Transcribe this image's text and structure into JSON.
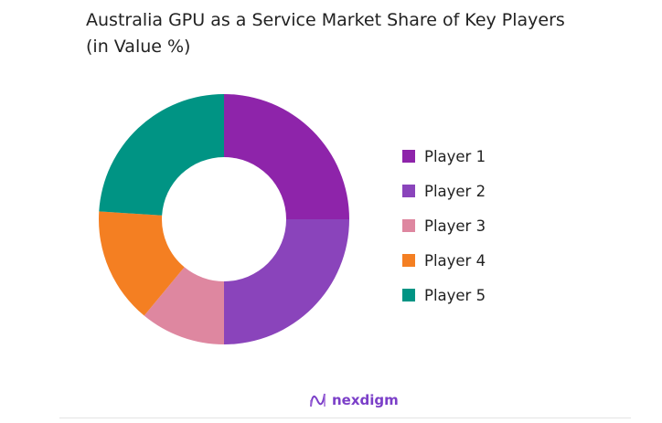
{
  "chart_data": {
    "type": "pie",
    "donut": true,
    "title": "Australia GPU as a Service Market Share of Key Players (in Value %)",
    "categories": [
      "Player 1",
      "Player 2",
      "Player 3",
      "Player 4",
      "Player 5"
    ],
    "values": [
      25,
      25,
      11,
      15,
      24
    ],
    "colors": [
      "#8e24aa",
      "#8a44bb",
      "#de87a0",
      "#f47f22",
      "#009484"
    ],
    "legend": "right"
  },
  "branding": {
    "logo_text": "nexdigm"
  }
}
